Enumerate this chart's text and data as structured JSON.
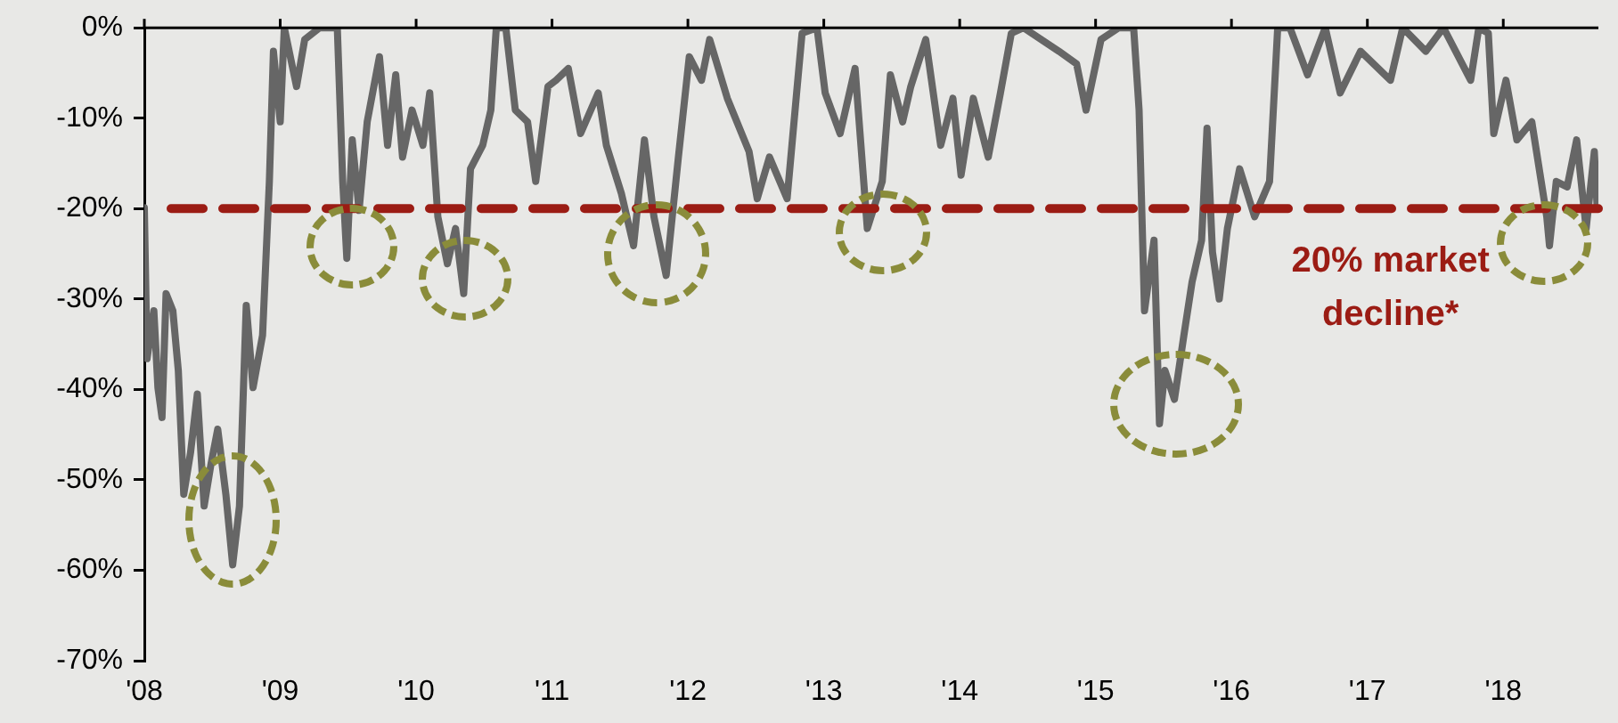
{
  "chart_data": {
    "type": "line",
    "x": [
      2008.0,
      2008.02,
      2008.07,
      2008.1,
      2008.13,
      2008.16,
      2008.21,
      2008.25,
      2008.29,
      2008.34,
      2008.39,
      2008.44,
      2008.49,
      2008.54,
      2008.6,
      2008.65,
      2008.7,
      2008.75,
      2008.8,
      2008.87,
      2008.92,
      2008.95,
      2009.0,
      2009.03,
      2009.12,
      2009.18,
      2009.29,
      2009.42,
      2009.46,
      2009.49,
      2009.53,
      2009.58,
      2009.64,
      2009.73,
      2009.79,
      2009.85,
      2009.9,
      2009.97,
      2010.05,
      2010.1,
      2010.16,
      2010.23,
      2010.29,
      2010.35,
      2010.4,
      2010.49,
      2010.55,
      2010.59,
      2010.66,
      2010.73,
      2010.82,
      2010.88,
      2010.97,
      2011.03,
      2011.12,
      2011.21,
      2011.34,
      2011.4,
      2011.51,
      2011.6,
      2011.68,
      2011.75,
      2011.84,
      2011.93,
      2012.01,
      2012.1,
      2012.16,
      2012.29,
      2012.45,
      2012.51,
      2012.6,
      2012.73,
      2012.8,
      2012.84,
      2012.95,
      2013.01,
      2013.12,
      2013.23,
      2013.32,
      2013.43,
      2013.49,
      2013.58,
      2013.64,
      2013.75,
      2013.86,
      2013.95,
      2014.01,
      2014.1,
      2014.21,
      2014.3,
      2014.38,
      2014.47,
      2014.73,
      2014.86,
      2014.93,
      2015.04,
      2015.17,
      2015.28,
      2015.32,
      2015.36,
      2015.43,
      2015.47,
      2015.51,
      2015.58,
      2015.65,
      2015.71,
      2015.78,
      2015.82,
      2015.86,
      2015.91,
      2015.97,
      2016.06,
      2016.17,
      2016.28,
      2016.34,
      2016.43,
      2016.56,
      2016.69,
      2016.8,
      2016.95,
      2017.17,
      2017.26,
      2017.43,
      2017.56,
      2017.76,
      2017.82,
      2017.89,
      2017.93,
      2018.02,
      2018.1,
      2018.21,
      2018.32,
      2018.34,
      2018.39,
      2018.47,
      2018.54,
      2018.61,
      2018.67,
      2018.69
    ],
    "series": [
      {
        "color": "#666666",
        "values": [
          -19.9,
          -36.6,
          -31.3,
          -39.8,
          -43.1,
          -29.4,
          -31.3,
          -37.9,
          -51.6,
          -47.0,
          -40.5,
          -52.9,
          -48.3,
          -44.4,
          -51.6,
          -59.4,
          -52.9,
          -30.7,
          -39.8,
          -34.0,
          -17.0,
          -2.6,
          -10.4,
          0,
          -6.5,
          -1.3,
          0,
          0,
          -17.0,
          -25.5,
          -12.4,
          -20.2,
          -10.4,
          -3.2,
          -13.0,
          -5.2,
          -14.3,
          -9.1,
          -13.0,
          -7.2,
          -20.9,
          -26.1,
          -22.2,
          -29.4,
          -15.6,
          -13.0,
          -9.1,
          0,
          0,
          -9.1,
          -10.4,
          -17.0,
          -6.5,
          -5.8,
          -4.5,
          -11.7,
          -7.2,
          -13.0,
          -18.3,
          -24.1,
          -12.4,
          -20.9,
          -27.4,
          -14.3,
          -3.2,
          -5.8,
          -1.3,
          -7.8,
          -13.7,
          -18.9,
          -14.3,
          -18.9,
          -7.2,
          -0.6,
          0,
          -7.2,
          -11.7,
          -4.5,
          -22.2,
          -17.0,
          -5.2,
          -10.4,
          -6.5,
          -1.3,
          -13.0,
          -7.8,
          -16.3,
          -7.8,
          -14.3,
          -7.2,
          -0.6,
          0,
          -2.6,
          -4.0,
          -9.1,
          -1.3,
          0,
          0,
          -9.1,
          -31.3,
          -23.5,
          -43.8,
          -37.9,
          -41.1,
          -34.0,
          -28.1,
          -23.5,
          -11.1,
          -24.8,
          -30.0,
          -22.2,
          -15.6,
          -20.9,
          -17.0,
          0,
          0,
          -5.2,
          0,
          -7.2,
          -2.6,
          -5.8,
          0,
          -2.6,
          0,
          -5.8,
          0,
          -0.6,
          -11.7,
          -5.8,
          -12.4,
          -10.4,
          -20.9,
          -24.1,
          -17.0,
          -17.6,
          -12.4,
          -22.2,
          -13.7,
          -19.6
        ]
      }
    ],
    "xlim": [
      2008,
      2018.7
    ],
    "xticks": [
      {
        "value": 2008,
        "label": "'08"
      },
      {
        "value": 2009,
        "label": "'09"
      },
      {
        "value": 2010,
        "label": "'10"
      },
      {
        "value": 2011,
        "label": "'11"
      },
      {
        "value": 2012,
        "label": "'12"
      },
      {
        "value": 2013,
        "label": "'13"
      },
      {
        "value": 2014,
        "label": "'14"
      },
      {
        "value": 2015,
        "label": "'15"
      },
      {
        "value": 2016,
        "label": "'16"
      },
      {
        "value": 2017,
        "label": "'17"
      },
      {
        "value": 2018,
        "label": "'18"
      }
    ],
    "ylim": [
      -70,
      0
    ],
    "yticks": [
      {
        "value": -70,
        "label": "-70%"
      },
      {
        "value": -60,
        "label": "-60%"
      },
      {
        "value": -50,
        "label": "-50%"
      },
      {
        "value": -40,
        "label": "-40%"
      },
      {
        "value": -30,
        "label": "-30%"
      },
      {
        "value": -20,
        "label": "-20%"
      },
      {
        "value": -10,
        "label": "-10%"
      },
      {
        "value": 0,
        "label": "0%"
      }
    ],
    "ref_lines": [
      {
        "axis": "y",
        "value": -20,
        "label": "20% market decline*",
        "color": "#9b1c14",
        "line_style": "dashed"
      }
    ],
    "grid": false,
    "legend": false,
    "marker": "none",
    "line_style": "solid"
  }
}
